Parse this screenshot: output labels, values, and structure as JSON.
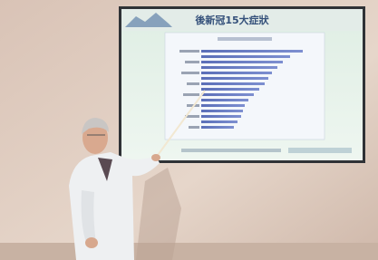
{
  "slide": {
    "title": "後新冠15大症狀"
  }
}
